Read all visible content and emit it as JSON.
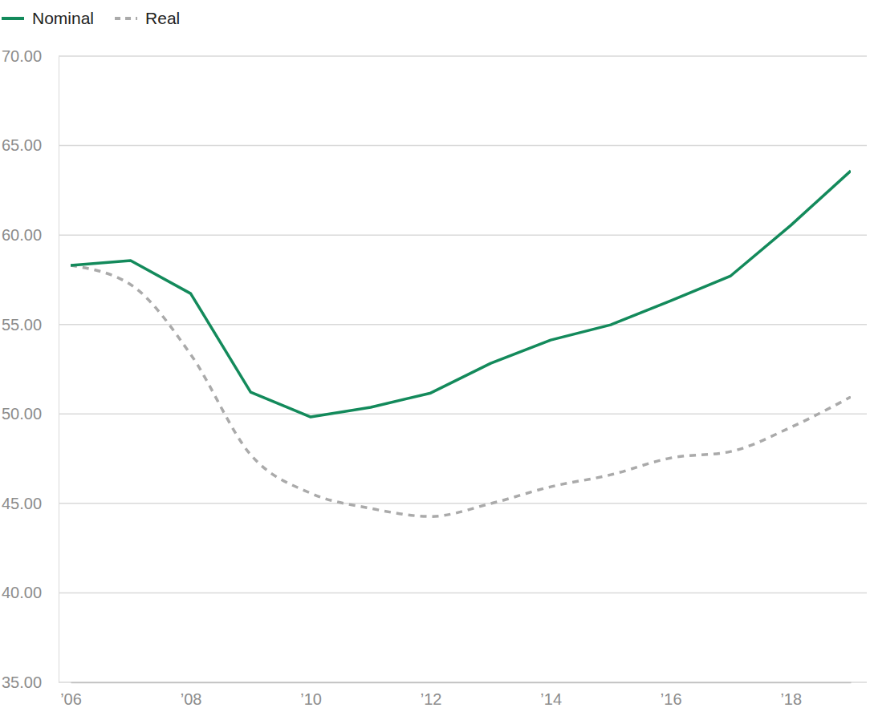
{
  "chart_data": {
    "type": "line",
    "x": [
      2006,
      2007,
      2008,
      2009,
      2010,
      2011,
      2012,
      2013,
      2014,
      2015,
      2016,
      2017,
      2018,
      2019
    ],
    "series": [
      {
        "name": "Nominal",
        "color": "#138a5b",
        "line_style": "solid",
        "values": [
          58.3,
          58.57,
          56.73,
          51.22,
          49.83,
          50.37,
          51.17,
          52.83,
          54.13,
          54.98,
          56.33,
          57.72,
          60.54,
          63.59
        ]
      },
      {
        "name": "Real",
        "color": "#aaaaaa",
        "line_style": "dashed",
        "values": [
          58.3,
          57.23,
          53.33,
          47.72,
          45.57,
          44.72,
          44.27,
          44.99,
          45.93,
          46.6,
          47.54,
          47.9,
          49.25,
          50.95
        ]
      }
    ],
    "xlim": [
      2006,
      2019
    ],
    "xticks": [
      {
        "value": 2006,
        "label": "’06"
      },
      {
        "value": 2008,
        "label": "’08"
      },
      {
        "value": 2010,
        "label": "’10"
      },
      {
        "value": 2012,
        "label": "’12"
      },
      {
        "value": 2014,
        "label": "’14"
      },
      {
        "value": 2016,
        "label": "’16"
      },
      {
        "value": 2018,
        "label": "’18"
      }
    ],
    "ylim": [
      35,
      70
    ],
    "yticks": [
      {
        "value": 35,
        "label": "35.00"
      },
      {
        "value": 40,
        "label": "40.00"
      },
      {
        "value": 45,
        "label": "45.00"
      },
      {
        "value": 50,
        "label": "50.00"
      },
      {
        "value": 55,
        "label": "55.00"
      },
      {
        "value": 60,
        "label": "60.00"
      },
      {
        "value": 65,
        "label": "65.00"
      },
      {
        "value": 70,
        "label": "70.00"
      }
    ],
    "grid": true,
    "legend": "top-left"
  }
}
